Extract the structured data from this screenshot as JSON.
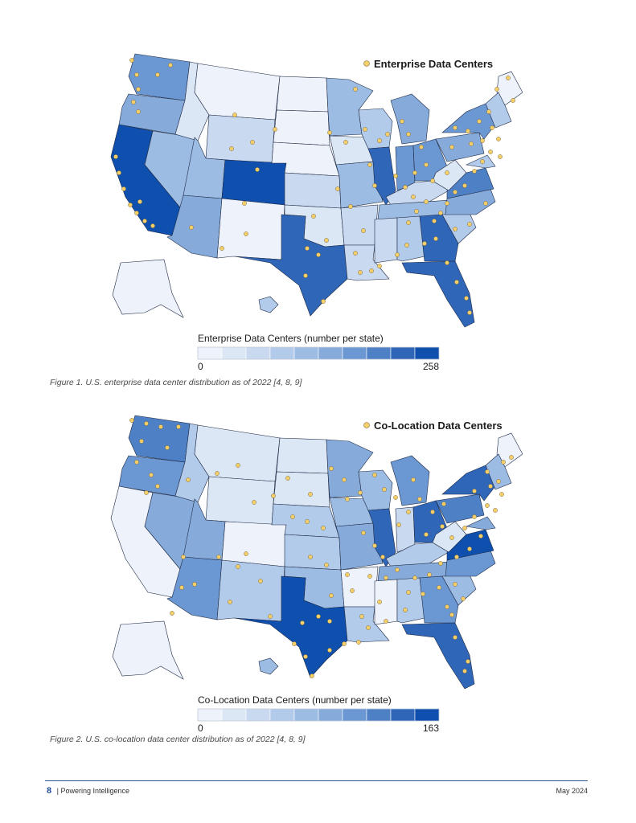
{
  "maps": [
    {
      "legend_title": "Enterprise Data Centers",
      "scale_title": "Enterprise Data Centers (number per state)",
      "scale_min": "0",
      "scale_max": "258",
      "caption": "Figure 1. U.S. enterprise data center distribution as of 2022 [4, 8, 9]",
      "level_fill": {
        "WA": 6,
        "OR": 5,
        "CA": 9,
        "NV": 4,
        "ID": 1,
        "MT": 0,
        "WY": 2,
        "UT": 4,
        "AZ": 5,
        "CO": 9,
        "NM": 0,
        "ND": 0,
        "SD": 0,
        "NE": 0,
        "KS": 2,
        "OK": 1,
        "TX": 8,
        "MN": 4,
        "IA": 1,
        "MO": 4,
        "AR": 2,
        "LA": 2,
        "WI": 3,
        "IL": 8,
        "MI": 5,
        "IN": 6,
        "OH": 6,
        "KY": 2,
        "TN": 4,
        "MS": 2,
        "AL": 3,
        "GA": 8,
        "FL": 8,
        "SC": 3,
        "NC": 5,
        "VA": 7,
        "WV": 1,
        "PA": 5,
        "NY": 6,
        "ME": 0,
        "NE_states": 3,
        "MD": 3,
        "AK": 0,
        "HI": 3
      }
    },
    {
      "legend_title": "Co-Location Data Centers",
      "scale_title": "Co-Location Data Centers (number per state)",
      "scale_min": "0",
      "scale_max": "163",
      "caption": "Figure 2. U.S. co-location data center distribution as of 2022 [4, 8, 9]",
      "level_fill": {
        "WA": 7,
        "OR": 6,
        "CA": 0,
        "NV": 5,
        "ID": 3,
        "MT": 1,
        "WY": 1,
        "UT": 5,
        "AZ": 6,
        "CO": 0,
        "NM": 3,
        "ND": 1,
        "SD": 1,
        "NE": 3,
        "KS": 3,
        "OK": 4,
        "TX": 9,
        "MN": 5,
        "IA": 4,
        "MO": 5,
        "AR": 0,
        "LA": 3,
        "WI": 4,
        "IL": 8,
        "MI": 6,
        "IN": 2,
        "OH": 8,
        "KY": 3,
        "TN": 5,
        "MS": 0,
        "AL": 3,
        "GA": 6,
        "FL": 8,
        "SC": 4,
        "NC": 6,
        "VA": 9,
        "WV": 1,
        "PA": 7,
        "NY": 8,
        "ME": 0,
        "NE_states": 4,
        "MD": 5,
        "AK": 0,
        "HI": 4
      }
    }
  ],
  "colors": {
    "scale": [
      "#eef3fb",
      "#dce7f6",
      "#c8d9f0",
      "#b3cbea",
      "#9dbce3",
      "#86abdb",
      "#6b97d2",
      "#4e80c6",
      "#2f66b8",
      "#0f4fad"
    ],
    "dot_fill": "#f6cf6b",
    "dot_stroke": "#7a6a38",
    "border": "#1e2a45",
    "accent": "#2f5597"
  },
  "footer": {
    "page_number": "8",
    "separator": "|",
    "doc_title": "Powering Intelligence",
    "date": "May 2024"
  }
}
